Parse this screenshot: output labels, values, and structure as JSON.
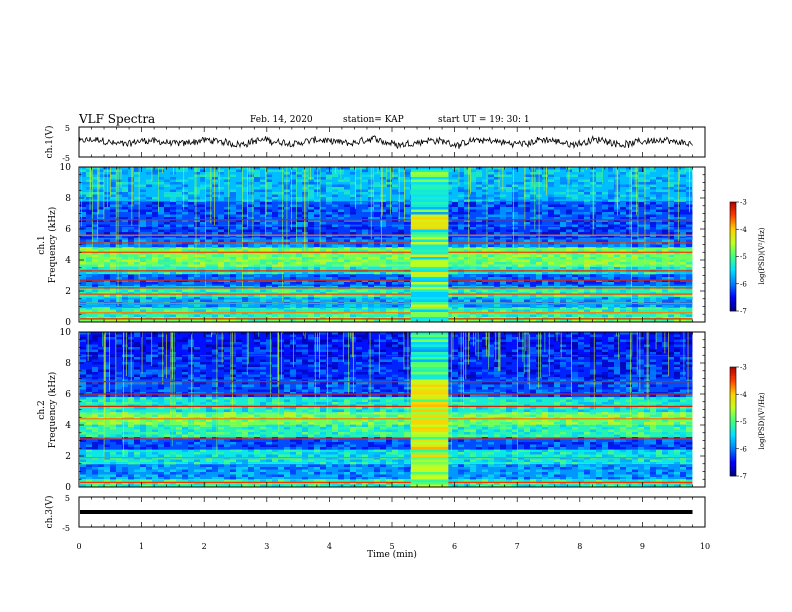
{
  "header": {
    "title": "VLF Spectra",
    "date": "Feb. 14, 2020",
    "station": "station= KAP",
    "start": "start  UT =   19: 30: 1"
  },
  "colors": {
    "colormap": [
      "#00007f",
      "#0000ff",
      "#0080ff",
      "#00e0ff",
      "#40ff80",
      "#c0ff20",
      "#ffd000",
      "#ff4000",
      "#b00000",
      "#ffffff"
    ],
    "waveform": "#000000"
  },
  "chart_data": [
    {
      "type": "line",
      "ylabel": "ch.1(V)",
      "ylim": [
        -5,
        5
      ],
      "yticks": [
        5,
        -5
      ],
      "xlim": [
        0,
        10
      ],
      "note_signal": "noisy waveform around 0 V, amplitude about ±2 V"
    },
    {
      "type": "heatmap",
      "ylabel_channel": "ch.1",
      "ylabel": "Frequency (kHz)",
      "ylim": [
        0,
        10
      ],
      "yticks": [
        0,
        2,
        4,
        6,
        8,
        10
      ],
      "xlim": [
        0,
        10
      ],
      "data_end_min": 9.8,
      "colorbar": {
        "label": "log(PSD)(V²/Hz)",
        "range": [
          -7,
          -3
        ],
        "ticks": [
          -3,
          -4,
          -5,
          -6,
          -7
        ]
      },
      "burst_interval_min": [
        5.3,
        5.9
      ],
      "bands": [
        {
          "f_khz": [
            0.0,
            0.3
          ],
          "level": 0.55
        },
        {
          "f_khz": [
            0.3,
            0.9
          ],
          "level": 0.45
        },
        {
          "f_khz": [
            0.9,
            1.6
          ],
          "level": 0.3
        },
        {
          "f_khz": [
            1.6,
            2.3
          ],
          "level": 0.45
        },
        {
          "f_khz": [
            2.3,
            3.1
          ],
          "level": 0.22
        },
        {
          "f_khz": [
            3.1,
            3.6
          ],
          "level": 0.42
        },
        {
          "f_khz": [
            3.6,
            4.8
          ],
          "level": 0.55
        },
        {
          "f_khz": [
            4.8,
            5.4
          ],
          "level": 0.25
        },
        {
          "f_khz": [
            5.4,
            6.2
          ],
          "level": 0.18
        },
        {
          "f_khz": [
            6.2,
            7.8
          ],
          "level": 0.2
        },
        {
          "f_khz": [
            7.8,
            10.0
          ],
          "level": 0.33
        }
      ],
      "lines_khz": [
        0.2,
        0.6,
        1.2,
        1.8,
        2.2,
        2.7,
        3.3,
        4.5,
        5.1,
        5.6,
        6.6
      ]
    },
    {
      "type": "heatmap",
      "ylabel_channel": "ch.2",
      "ylabel": "Frequency (kHz)",
      "ylim": [
        0,
        10
      ],
      "yticks": [
        0,
        2,
        4,
        6,
        8,
        10
      ],
      "xlim": [
        0,
        10
      ],
      "data_end_min": 9.8,
      "colorbar": {
        "label": "log(PSD)(V²/Hz)",
        "range": [
          -7,
          -3
        ],
        "ticks": [
          -3,
          -4,
          -5,
          -6,
          -7
        ]
      },
      "burst_interval_min": [
        5.3,
        5.9
      ],
      "bands": [
        {
          "f_khz": [
            0.0,
            0.5
          ],
          "level": 0.45
        },
        {
          "f_khz": [
            0.5,
            1.5
          ],
          "level": 0.28
        },
        {
          "f_khz": [
            1.5,
            2.4
          ],
          "level": 0.4
        },
        {
          "f_khz": [
            2.4,
            3.2
          ],
          "level": 0.2
        },
        {
          "f_khz": [
            3.2,
            4.0
          ],
          "level": 0.45
        },
        {
          "f_khz": [
            4.0,
            4.8
          ],
          "level": 0.55
        },
        {
          "f_khz": [
            4.8,
            5.8
          ],
          "level": 0.42
        },
        {
          "f_khz": [
            5.8,
            7.0
          ],
          "level": 0.2
        },
        {
          "f_khz": [
            7.0,
            8.5
          ],
          "level": 0.16
        },
        {
          "f_khz": [
            8.5,
            10.0
          ],
          "level": 0.14
        }
      ],
      "lines_khz": [
        0.3,
        1.9,
        3.1,
        4.4,
        5.2,
        6.0,
        6.8
      ]
    },
    {
      "type": "line",
      "ylabel": "ch.3(V)",
      "ylim": [
        -5,
        5
      ],
      "yticks": [
        5,
        -5
      ],
      "xlim": [
        0,
        10
      ],
      "xlabel": "Time (min)",
      "xticks": [
        0,
        1,
        2,
        3,
        4,
        5,
        6,
        7,
        8,
        9,
        10
      ],
      "constant_value_v": 0
    }
  ]
}
